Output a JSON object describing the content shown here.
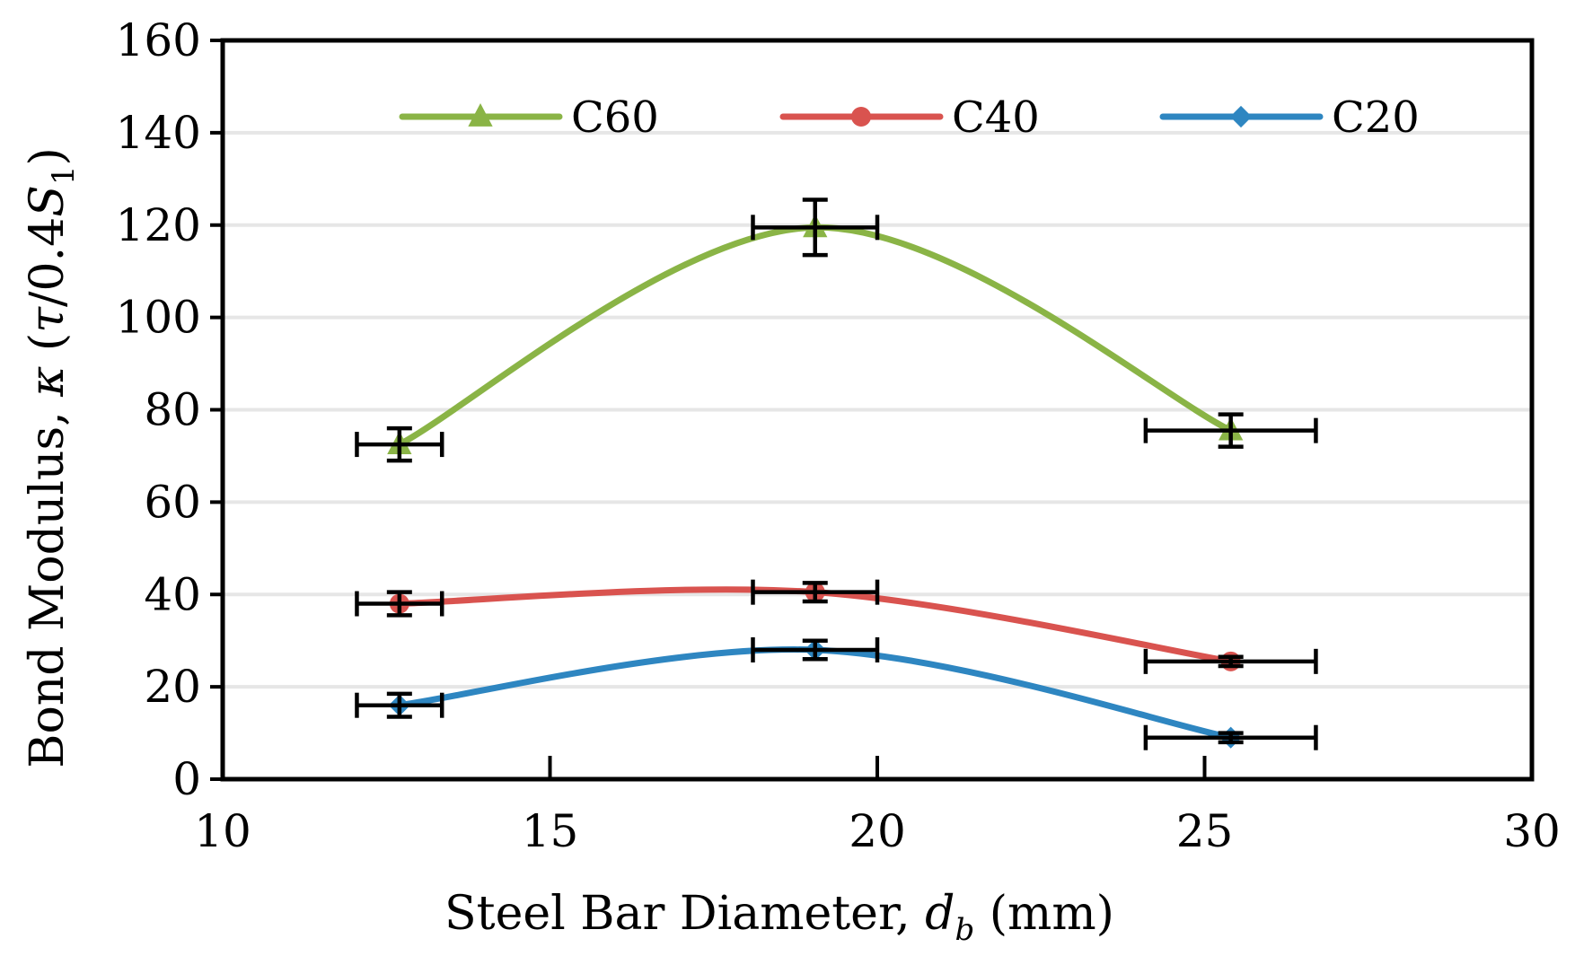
{
  "chart_data": {
    "type": "scatter",
    "title": "",
    "xlabel": {
      "prefix": "Steel Bar Diameter, ",
      "var": "d",
      "sub": "b",
      "suffix": " (mm)"
    },
    "ylabel": {
      "prefix": "Bond Modulus, ",
      "var": "κ",
      "open": " (",
      "tau": "τ",
      "mid": "/0.4",
      "s": "S",
      "sub": "1",
      "close": ")"
    },
    "xlim": [
      10,
      30
    ],
    "ylim": [
      0,
      160
    ],
    "xticks": [
      "10",
      "15",
      "20",
      "25",
      "30"
    ],
    "yticks": [
      "0",
      "20",
      "40",
      "60",
      "80",
      "100",
      "120",
      "140",
      "160"
    ],
    "grid": "horizontal",
    "legend": "top, horizontal, inside plot",
    "series": [
      {
        "name": "C60",
        "color": "#8ab446",
        "marker": "triangle",
        "x": [
          12.7,
          19.05,
          25.4
        ],
        "y": [
          72.5,
          119.5,
          75.5
        ],
        "yerr": [
          3.5,
          6.0,
          3.5
        ],
        "xerr": [
          0.65,
          0.95,
          1.3
        ]
      },
      {
        "name": "C40",
        "color": "#d9534f",
        "marker": "circle",
        "x": [
          12.7,
          19.05,
          25.4
        ],
        "y": [
          38,
          40.5,
          25.5
        ],
        "yerr": [
          2.5,
          2.0,
          1.0
        ],
        "xerr": [
          0.65,
          0.95,
          1.3
        ]
      },
      {
        "name": "C20",
        "color": "#2e86c1",
        "marker": "diamond",
        "x": [
          12.7,
          19.05,
          25.4
        ],
        "y": [
          16,
          28,
          9
        ],
        "yerr": [
          2.5,
          2.0,
          1.0
        ],
        "xerr": [
          0.65,
          0.95,
          1.3
        ]
      }
    ]
  }
}
